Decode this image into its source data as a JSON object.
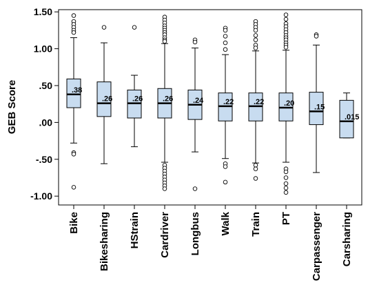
{
  "chart_data": {
    "type": "boxplot",
    "ylabel": "GEB Score",
    "ylim": [
      -1.12,
      1.53
    ],
    "yticks": [
      {
        "value": 1.5,
        "label": "1.50"
      },
      {
        "value": 1.0,
        "label": "1.00"
      },
      {
        "value": 0.5,
        "label": ".50"
      },
      {
        "value": 0.0,
        "label": ".00"
      },
      {
        "value": -0.5,
        "label": "-.50"
      },
      {
        "value": -1.0,
        "label": "-1.00"
      }
    ],
    "grid": false,
    "colors": {
      "box_fill": "#c8dcf0",
      "box_stroke": "#000000",
      "outlier_stroke": "#000000"
    },
    "categories": [
      "Bike",
      "Bikesharing",
      "HStrain",
      "Cardriver",
      "Longbus",
      "Walk",
      "Train",
      "PT",
      "Carpassenger",
      "Carsharing"
    ],
    "boxes": [
      {
        "category": "Bike",
        "median": 0.38,
        "median_label": ".38",
        "q1": 0.2,
        "q3": 0.59,
        "whisker_low": -0.28,
        "whisker_high": 1.15,
        "outliers": [
          1.45,
          1.37,
          1.33,
          1.29,
          1.25,
          1.22,
          -0.41,
          -0.43,
          -0.88
        ]
      },
      {
        "category": "Bikesharing",
        "median": 0.26,
        "median_label": ".26",
        "q1": 0.08,
        "q3": 0.55,
        "whisker_low": -0.56,
        "whisker_high": 1.08,
        "outliers": [
          1.29
        ]
      },
      {
        "category": "HStrain",
        "median": 0.26,
        "median_label": ".26",
        "q1": 0.06,
        "q3": 0.44,
        "whisker_low": -0.33,
        "whisker_high": 0.64,
        "outliers": [
          1.29
        ]
      },
      {
        "category": "Cardriver",
        "median": 0.26,
        "median_label": ".26",
        "q1": 0.06,
        "q3": 0.46,
        "whisker_low": -0.54,
        "whisker_high": 1.07,
        "outliers": [
          1.43,
          1.39,
          1.35,
          1.31,
          1.28,
          1.25,
          1.22,
          1.19,
          1.15,
          1.12,
          1.1,
          -0.58,
          -0.62,
          -0.66,
          -0.7,
          -0.74,
          -0.78,
          -0.82,
          -0.86,
          -0.9
        ]
      },
      {
        "category": "Longbus",
        "median": 0.24,
        "median_label": ".24",
        "q1": 0.04,
        "q3": 0.44,
        "whisker_low": -0.4,
        "whisker_high": 1.01,
        "outliers": [
          1.12,
          1.09,
          -0.9
        ]
      },
      {
        "category": "Walk",
        "median": 0.22,
        "median_label": ".22",
        "q1": 0.02,
        "q3": 0.4,
        "whisker_low": -0.49,
        "whisker_high": 0.92,
        "outliers": [
          1.28,
          1.25,
          1.17,
          1.08,
          0.99,
          -0.56,
          -0.6,
          -0.81
        ]
      },
      {
        "category": "Train",
        "median": 0.22,
        "median_label": ".22",
        "q1": 0.02,
        "q3": 0.4,
        "whisker_low": -0.55,
        "whisker_high": 0.97,
        "outliers": [
          1.37,
          1.33,
          1.29,
          1.25,
          1.18,
          1.12,
          1.05,
          1.01,
          -0.58,
          -0.63,
          -0.76
        ]
      },
      {
        "category": "PT",
        "median": 0.2,
        "median_label": ".20",
        "q1": 0.02,
        "q3": 0.4,
        "whisker_low": -0.54,
        "whisker_high": 0.98,
        "outliers": [
          1.46,
          1.4,
          1.34,
          1.3,
          1.26,
          1.22,
          1.18,
          1.15,
          1.12,
          1.08,
          1.05,
          1.02,
          -0.63,
          -0.67,
          -0.75,
          -0.83,
          -0.89,
          -0.95
        ]
      },
      {
        "category": "Carpassenger",
        "median": 0.15,
        "median_label": ".15",
        "q1": -0.03,
        "q3": 0.41,
        "whisker_low": -0.68,
        "whisker_high": 1.05,
        "outliers": [
          1.19,
          1.17
        ]
      },
      {
        "category": "Carsharing",
        "median": 0.015,
        "median_label": ".015",
        "q1": -0.21,
        "q3": 0.3,
        "whisker_low": -0.21,
        "whisker_high": 0.4,
        "outliers": []
      }
    ]
  }
}
